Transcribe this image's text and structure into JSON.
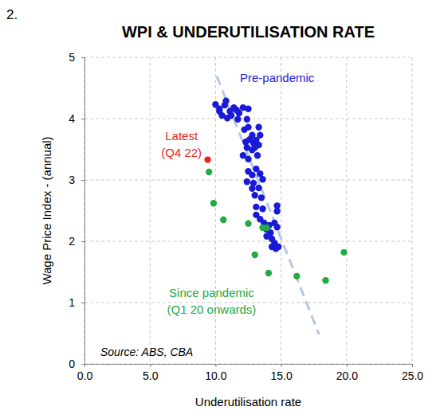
{
  "chart_data": {
    "type": "scatter",
    "label": "2.",
    "title": "WPI & UNDERUTILISATION RATE",
    "x_label": "Underutilisation rate",
    "y_label": "Wage Price Index - (annual)",
    "source": "Source: ABS, CBA",
    "xlim": [
      0,
      25
    ],
    "ylim": [
      0,
      5
    ],
    "xticks": [
      {
        "value": 0,
        "label": "0.0"
      },
      {
        "value": 5,
        "label": "5.0"
      },
      {
        "value": 10,
        "label": "10.0"
      },
      {
        "value": 15,
        "label": "15.0"
      },
      {
        "value": 20,
        "label": "20.0"
      },
      {
        "value": 25,
        "label": "25.0"
      }
    ],
    "yticks": [
      0,
      1,
      2,
      3,
      4,
      5
    ],
    "grid": true,
    "series": [
      {
        "type": "line",
        "line_style": "dashed",
        "color": "#b4c7e7",
        "x": [
          10.1,
          17.9
        ],
        "values": [
          4.69,
          0.48
        ]
      },
      {
        "type": "scatter",
        "marker": "circle",
        "color": "#1a1ad6",
        "x": [
          10.0,
          10.3,
          10.7,
          10.8,
          11.1,
          11.4,
          11.6,
          10.5,
          10.9,
          11.2,
          11.7,
          11.8,
          12.1,
          12.5,
          12.4,
          10.3,
          12.2,
          12.5,
          12.8,
          12.3,
          12.6,
          12.9,
          13.1,
          13.3,
          12.4,
          12.8,
          13.0,
          13.4,
          13.2,
          12.1,
          12.5,
          13.3,
          12.5,
          12.8,
          13.1,
          13.4,
          12.4,
          12.9,
          13.3,
          13.0,
          13.5,
          12.8,
          13.6,
          13.1,
          13.6,
          14.7,
          14.7,
          13.4,
          13.7,
          14.1,
          14.5,
          13.9,
          14.2,
          14.7,
          14.3,
          13.9,
          14.5,
          14.6,
          14.3,
          14.8,
          13.1
        ],
        "values": [
          4.23,
          4.16,
          4.22,
          4.29,
          4.12,
          4.18,
          4.14,
          4.05,
          4.01,
          4.05,
          3.99,
          4.09,
          4.18,
          4.16,
          3.99,
          4.12,
          3.82,
          3.86,
          3.73,
          3.62,
          3.66,
          3.6,
          3.65,
          3.57,
          3.53,
          3.49,
          3.53,
          3.73,
          3.4,
          3.4,
          3.34,
          3.86,
          3.14,
          3.08,
          3.18,
          3.1,
          2.97,
          2.95,
          2.87,
          2.75,
          2.71,
          2.86,
          3.01,
          2.56,
          2.53,
          2.58,
          2.49,
          2.36,
          2.3,
          2.26,
          2.3,
          2.19,
          2.14,
          2.23,
          2.04,
          2.08,
          1.97,
          1.88,
          1.91,
          1.91,
          2.43
        ]
      },
      {
        "type": "scatter",
        "marker": "circle",
        "color": "#22aa44",
        "x": [
          9.5,
          9.85,
          10.6,
          12.5,
          13.6,
          13.9,
          13.0,
          14.05,
          16.2,
          18.4,
          19.8
        ],
        "values": [
          3.13,
          2.62,
          2.35,
          2.29,
          2.22,
          2.22,
          1.78,
          1.48,
          1.43,
          1.36,
          1.82
        ]
      },
      {
        "type": "scatter",
        "marker": "circle",
        "color": "#e8241c",
        "x": [
          9.4
        ],
        "values": [
          3.33
        ]
      }
    ],
    "annotations": [
      {
        "text": [
          "Pre-pandemic"
        ],
        "x": 14.7,
        "y": 4.65,
        "color": "#2323d6"
      },
      {
        "text": [
          "Latest",
          "(Q4 22)"
        ],
        "x": 7.4,
        "y": 3.57,
        "color": "#e8241c"
      },
      {
        "text": [
          "Since pandemic",
          "(Q1 20 onwards)"
        ],
        "x": 9.7,
        "y": 1.0,
        "color": "#22aa44"
      }
    ]
  }
}
